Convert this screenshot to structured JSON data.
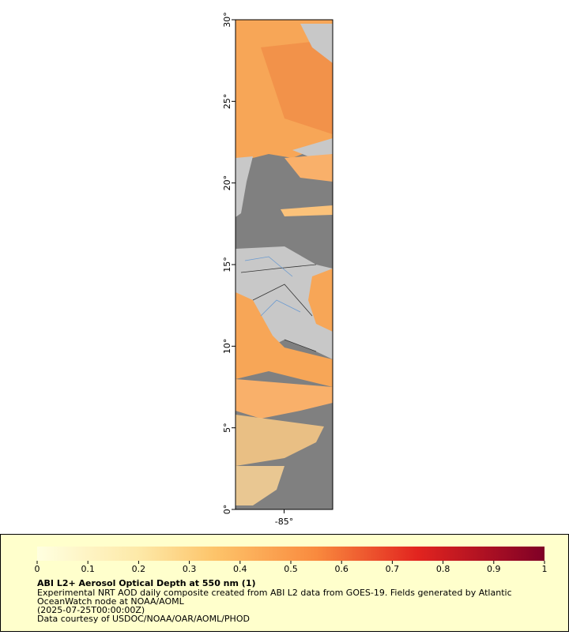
{
  "map": {
    "xlim": [
      -88,
      -82
    ],
    "ylim": [
      0,
      30
    ],
    "xticks": [
      {
        "value": -85,
        "label": "-85°"
      }
    ],
    "yticks": [
      {
        "value": 0,
        "label": "0°"
      },
      {
        "value": 5,
        "label": "5°"
      },
      {
        "value": 10,
        "label": "10°"
      },
      {
        "value": 15,
        "label": "15°"
      },
      {
        "value": 20,
        "label": "20°"
      },
      {
        "value": 25,
        "label": "25°"
      },
      {
        "value": 30,
        "label": "30°"
      }
    ]
  },
  "colorbar": {
    "range": [
      0,
      1
    ],
    "ticks": [
      0,
      0.1,
      0.2,
      0.3,
      0.4,
      0.5,
      0.6,
      0.7,
      0.8,
      0.9,
      1
    ]
  },
  "legend": {
    "title": "ABI L2+ Aerosol Optical Depth at 550 nm (1)",
    "lines": [
      "Experimental NRT AOD daily composite created from ABI L2 data from GOES-19. Fields generated by Atlantic",
      "OceanWatch node at NOAA/AOML",
      "(2025-07-25T00:00:00Z)",
      "Data courtesy of USDOC/NOAA/OAR/AOML/PHOD"
    ]
  }
}
